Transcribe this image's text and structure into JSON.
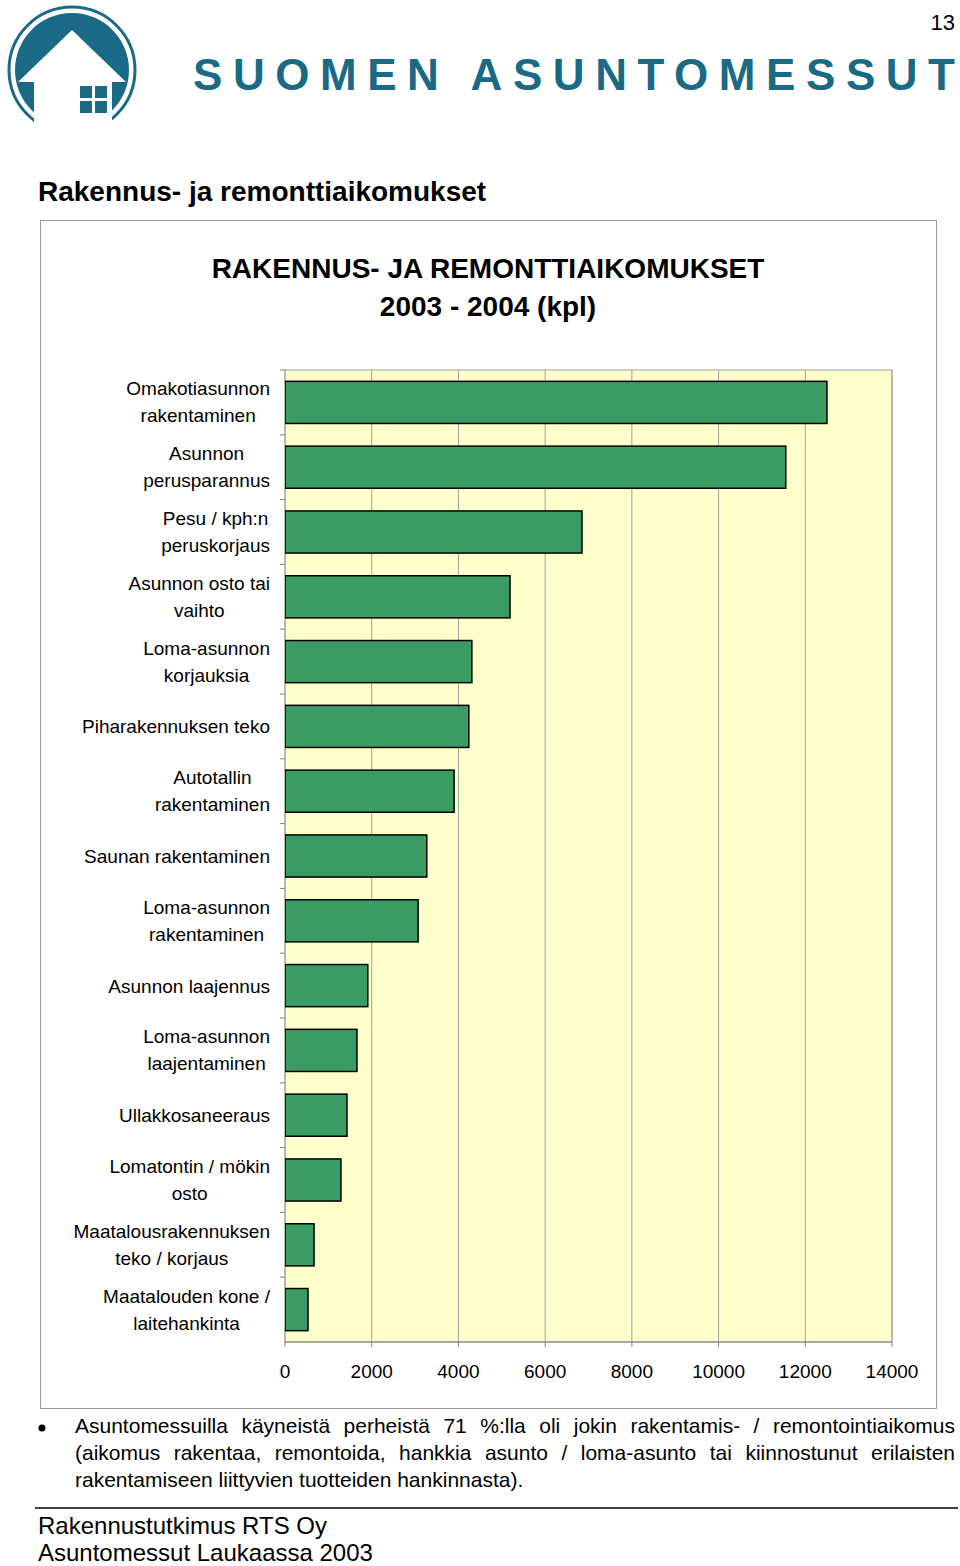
{
  "page_number": "13",
  "header": {
    "brand": "SUOMEN ASUNTOMESSUT"
  },
  "section_title": "Rakennus- ja remonttiaikomukset",
  "chart_data": {
    "type": "bar",
    "orientation": "horizontal",
    "title": "RAKENNUS- JA REMONTTIAIKOMUKSET\n2003 - 2004 (kpl)",
    "categories": [
      "Omakotiasunnon\nrakentaminen",
      "Asunnon\nperusparannus",
      "Pesu / kph:n\nperuskorjaus",
      "Asunnon osto tai\nvaihto",
      "Loma-asunnon\nkorjauksia",
      "Piharakennuksen teko",
      "Autotallin\nrakentaminen",
      "Saunan rakentaminen",
      "Loma-asunnon\nrakentaminen",
      "Asunnon laajennus",
      "Loma-asunnon\nlaajentaminen",
      "Ullakkosaneeraus",
      "Lomatontin / mökin\nosto",
      "Maatalousrakennuksen\nteko / korjaus",
      "Maatalouden kone /\nlaitehankinta"
    ],
    "values": [
      12500,
      11550,
      6850,
      5190,
      4310,
      4240,
      3900,
      3270,
      3070,
      1910,
      1660,
      1430,
      1290,
      670,
      530
    ],
    "color": "#3a9b63",
    "xlim": [
      0,
      14000
    ],
    "xticks": [
      0,
      2000,
      4000,
      6000,
      8000,
      10000,
      12000,
      14000
    ],
    "grid": true
  },
  "note": "Asuntomessuilla käyneistä perheistä 71 %:lla oli jokin rakentamis- / remontointiaikomus (aikomus rakentaa, remontoida, hankkia asunto / loma-asunto tai kiinnostunut erilaisten rakentamiseen liittyvien tuotteiden hankinnasta).",
  "footer": [
    "Rakennustutkimus RTS Oy",
    "Asuntomessut Laukaassa 2003"
  ]
}
